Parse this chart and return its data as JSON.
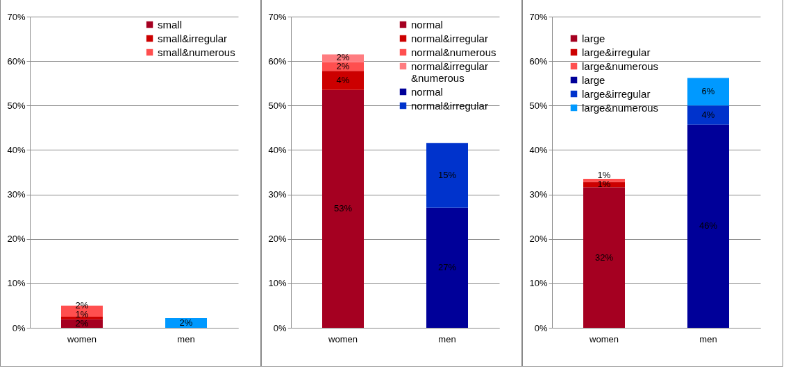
{
  "chart_data": [
    {
      "type": "bar",
      "stacked": true,
      "categories": [
        "women",
        "men"
      ],
      "ylim": [
        0,
        70
      ],
      "yticks": [
        {
          "value": 0,
          "label": "0%"
        },
        {
          "value": 10,
          "label": "10%"
        },
        {
          "value": 20,
          "label": "20%"
        },
        {
          "value": 30,
          "label": "30%"
        },
        {
          "value": 40,
          "label": "40%"
        },
        {
          "value": 50,
          "label": "50%"
        },
        {
          "value": 60,
          "label": "60%"
        },
        {
          "value": 70,
          "label": "70%"
        }
      ],
      "grid": "y",
      "legend": "top right",
      "series": [
        {
          "name": "small",
          "color": "#a50021",
          "values": [
            1.9,
            null
          ],
          "value_labels": [
            "2%",
            null
          ]
        },
        {
          "name": "small&irregular",
          "color": "#cc0000",
          "values": [
            0.6,
            null
          ],
          "value_labels": [
            "1%",
            null
          ]
        },
        {
          "name": "small&numerous",
          "color": "#ff4f4f",
          "values": [
            2.5,
            null
          ],
          "value_labels": [
            "2%",
            null
          ]
        },
        {
          "color": "#0099ff",
          "values": [
            null,
            2.2
          ],
          "value_labels": [
            null,
            "2%"
          ]
        }
      ]
    },
    {
      "type": "bar",
      "stacked": true,
      "categories": [
        "women",
        "men"
      ],
      "ylim": [
        0,
        70
      ],
      "yticks": [
        {
          "value": 0,
          "label": "0%"
        },
        {
          "value": 10,
          "label": "10%"
        },
        {
          "value": 20,
          "label": "20%"
        },
        {
          "value": 30,
          "label": "30%"
        },
        {
          "value": 40,
          "label": "40%"
        },
        {
          "value": 50,
          "label": "50%"
        },
        {
          "value": 60,
          "label": "60%"
        },
        {
          "value": 70,
          "label": "70%"
        }
      ],
      "grid": "y",
      "legend": "top right",
      "series": [
        {
          "name": "normal",
          "color": "#a50021",
          "values": [
            53.5,
            null
          ],
          "value_labels": [
            "53%",
            null
          ]
        },
        {
          "name": "normal&irregular",
          "color": "#cc0000",
          "values": [
            4.3,
            null
          ],
          "value_labels": [
            "4%",
            null
          ]
        },
        {
          "name": "normal&numerous",
          "color": "#ff4f4f",
          "values": [
            2.0,
            null
          ],
          "value_labels": [
            "2%",
            null
          ]
        },
        {
          "name": "normal&irregular&numerous",
          "color": "#ff7c80",
          "values": [
            1.7,
            null
          ],
          "value_labels": [
            "2%",
            null
          ]
        },
        {
          "name": "normal",
          "color": "#000099",
          "values": [
            null,
            27
          ],
          "value_labels": [
            null,
            "27%"
          ]
        },
        {
          "name": "normal&irregular",
          "color": "#0033cc",
          "values": [
            null,
            14.6
          ],
          "value_labels": [
            null,
            "15%"
          ]
        }
      ]
    },
    {
      "type": "bar",
      "stacked": true,
      "categories": [
        "women",
        "men"
      ],
      "ylim": [
        0,
        70
      ],
      "yticks": [
        {
          "value": 0,
          "label": "0%"
        },
        {
          "value": 10,
          "label": "10%"
        },
        {
          "value": 20,
          "label": "20%"
        },
        {
          "value": 30,
          "label": "30%"
        },
        {
          "value": 40,
          "label": "40%"
        },
        {
          "value": 50,
          "label": "50%"
        },
        {
          "value": 60,
          "label": "60%"
        },
        {
          "value": 70,
          "label": "70%"
        }
      ],
      "grid": "y",
      "legend": "top left",
      "series": [
        {
          "name": "large",
          "color": "#a50021",
          "values": [
            31.6,
            null
          ],
          "value_labels": [
            "32%",
            null
          ]
        },
        {
          "name": "large&irregular",
          "color": "#cc0000",
          "values": [
            1.2,
            null
          ],
          "value_labels": [
            "1%",
            null
          ]
        },
        {
          "name": "large&numerous",
          "color": "#ff4f4f",
          "values": [
            0.7,
            null
          ],
          "value_labels": [
            "1%",
            null
          ]
        },
        {
          "name": "large",
          "color": "#000099",
          "values": [
            null,
            45.7
          ],
          "value_labels": [
            null,
            "46%"
          ]
        },
        {
          "name": "large&irregular",
          "color": "#0033cc",
          "values": [
            null,
            4.3
          ],
          "value_labels": [
            null,
            "4%"
          ]
        },
        {
          "name": "large&numerous",
          "color": "#0099ff",
          "values": [
            null,
            6.2
          ],
          "value_labels": [
            null,
            "6%"
          ]
        }
      ]
    }
  ]
}
